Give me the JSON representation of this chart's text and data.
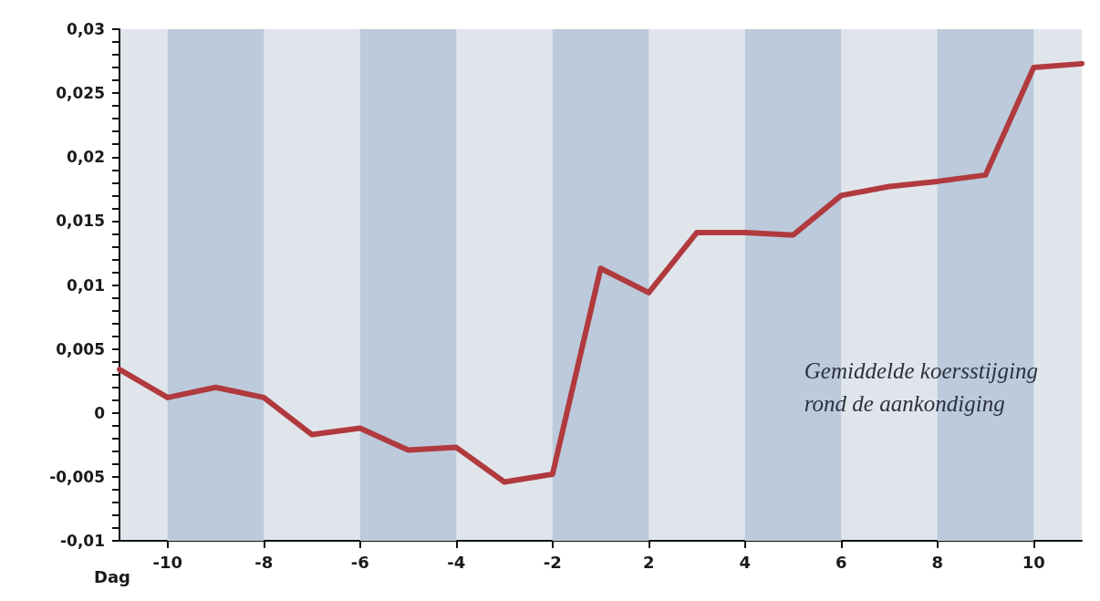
{
  "chart_data": {
    "type": "line",
    "xlabel": "Dag",
    "categories": [
      null,
      "-10",
      null,
      "-8",
      null,
      "-6",
      null,
      "-4",
      null,
      "-2",
      null,
      "2",
      null,
      "4",
      null,
      "6",
      null,
      "8",
      null,
      "10",
      null
    ],
    "series": [
      {
        "color": "#b03a3e",
        "values": [
          0.0034,
          0.0012,
          0.002,
          0.0012,
          -0.0017,
          -0.0012,
          -0.0029,
          -0.0027,
          -0.0054,
          -0.0048,
          0.0113,
          0.0094,
          0.0141,
          0.0141,
          0.0139,
          0.017,
          0.0177,
          0.0181,
          0.0186,
          0.027,
          0.0273
        ]
      }
    ],
    "ylim": [
      -0.01,
      0.03
    ],
    "yticks": [
      {
        "value": -0.01,
        "label": "-0,01"
      },
      {
        "value": -0.009,
        "label": null
      },
      {
        "value": -0.008,
        "label": null
      },
      {
        "value": -0.007,
        "label": null
      },
      {
        "value": -0.006,
        "label": null
      },
      {
        "value": -0.005,
        "label": "-0,005"
      },
      {
        "value": -0.004,
        "label": null
      },
      {
        "value": -0.003,
        "label": null
      },
      {
        "value": -0.002,
        "label": null
      },
      {
        "value": -0.001,
        "label": null
      },
      {
        "value": 0,
        "label": "0"
      },
      {
        "value": 0.001,
        "label": null
      },
      {
        "value": 0.002,
        "label": null
      },
      {
        "value": 0.003,
        "label": null
      },
      {
        "value": 0.004,
        "label": null
      },
      {
        "value": 0.005,
        "label": "0,005"
      },
      {
        "value": 0.006,
        "label": null
      },
      {
        "value": 0.007,
        "label": null
      },
      {
        "value": 0.008,
        "label": null
      },
      {
        "value": 0.009,
        "label": null
      },
      {
        "value": 0.01,
        "label": "0,01"
      },
      {
        "value": 0.011,
        "label": null
      },
      {
        "value": 0.012,
        "label": null
      },
      {
        "value": 0.013,
        "label": null
      },
      {
        "value": 0.014,
        "label": null
      },
      {
        "value": 0.015,
        "label": "0,015"
      },
      {
        "value": 0.016,
        "label": null
      },
      {
        "value": 0.017,
        "label": null
      },
      {
        "value": 0.018,
        "label": null
      },
      {
        "value": 0.019,
        "label": null
      },
      {
        "value": 0.02,
        "label": "0,02"
      },
      {
        "value": 0.021,
        "label": null
      },
      {
        "value": 0.022,
        "label": null
      },
      {
        "value": 0.023,
        "label": null
      },
      {
        "value": 0.024,
        "label": null
      },
      {
        "value": 0.025,
        "label": "0,025"
      },
      {
        "value": 0.026,
        "label": null
      },
      {
        "value": 0.027,
        "label": null
      },
      {
        "value": 0.028,
        "label": null
      },
      {
        "value": 0.029,
        "label": null
      },
      {
        "value": 0.03,
        "label": "0,03"
      }
    ],
    "bands": [
      {
        "axis": "x",
        "from": "-10",
        "to": "-8",
        "color": "#bccadb"
      },
      {
        "axis": "x",
        "from": "-6",
        "to": "-4",
        "color": "#bccadb"
      },
      {
        "axis": "x",
        "from": "-2",
        "to": "2",
        "color": "#bccadb"
      },
      {
        "axis": "x",
        "from": "4",
        "to": "6",
        "color": "#bccadb"
      },
      {
        "axis": "x",
        "from": "8",
        "to": "10",
        "color": "#bccadb"
      }
    ],
    "annotations": [
      "Gemiddelde koersstijging\nrond de aankondiging"
    ],
    "grid": false,
    "marker": "none",
    "line_style": "solid"
  }
}
